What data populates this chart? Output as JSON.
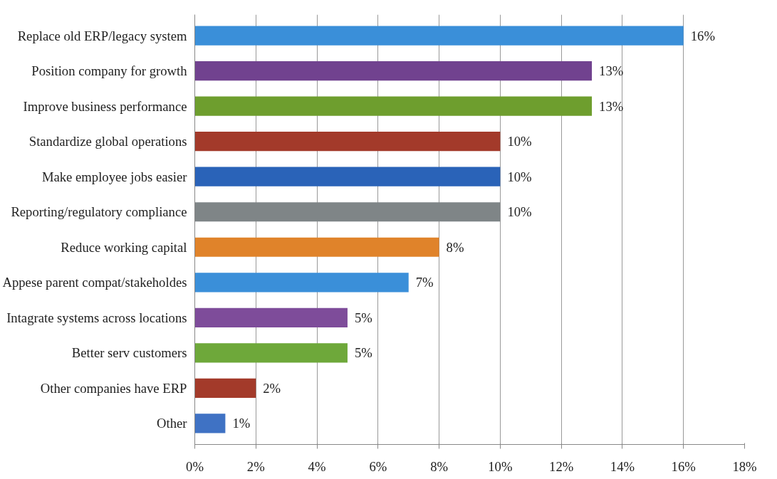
{
  "chart_data": {
    "type": "bar",
    "orientation": "horizontal",
    "categories": [
      "Replace old ERP/legacy system",
      "Position company for growth",
      "Improve business performance",
      "Standardize global operations",
      "Make employee jobs easier",
      "Reporting/regulatory compliance",
      "Reduce working capital",
      "Appese parent compat/stakeholdes",
      "Intagrate systems across locations",
      "Better serv customers",
      "Other companies have ERP",
      "Other"
    ],
    "values": [
      16,
      13,
      13,
      10,
      10,
      10,
      8,
      7,
      5,
      5,
      2,
      1
    ],
    "colors": [
      "#3a8fd9",
      "#71428f",
      "#6e9e2e",
      "#a33a2a",
      "#2a63b8",
      "#7f8587",
      "#e0832a",
      "#3a8fd9",
      "#7e4c9a",
      "#6ea83a",
      "#a33a2a",
      "#3f72c4"
    ],
    "value_labels": [
      "16%",
      "13%",
      "13%",
      "10%",
      "10%",
      "10%",
      "8%",
      "7%",
      "5%",
      "5%",
      "2%",
      "1%"
    ],
    "xlim": [
      0,
      18
    ],
    "xticks": [
      {
        "value": 0,
        "label": "0%"
      },
      {
        "value": 2,
        "label": "2%"
      },
      {
        "value": 4,
        "label": "4%"
      },
      {
        "value": 6,
        "label": "6%"
      },
      {
        "value": 8,
        "label": "8%"
      },
      {
        "value": 10,
        "label": "10%"
      },
      {
        "value": 12,
        "label": "12%"
      },
      {
        "value": 14,
        "label": "14%"
      },
      {
        "value": 16,
        "label": "16%"
      },
      {
        "value": 18,
        "label": "18%"
      }
    ],
    "grid": "x"
  }
}
